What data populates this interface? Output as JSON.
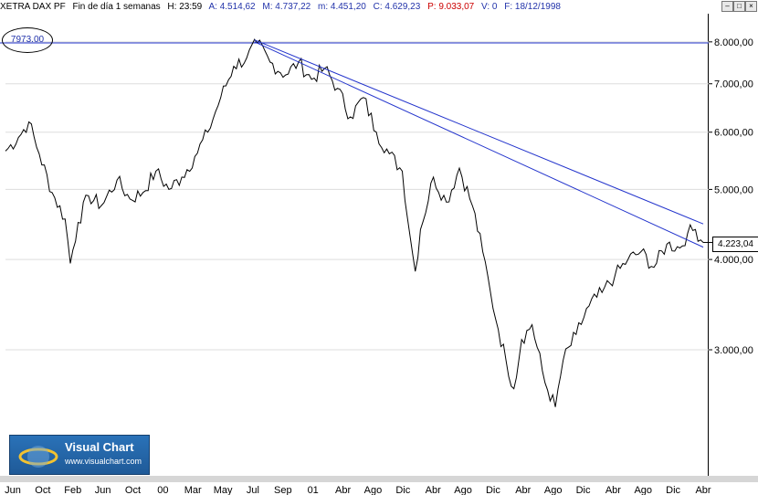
{
  "header": {
    "symbol": "XETRA DAX PF",
    "period": "Fin de día 1 semanas",
    "hour": "H: 23:59",
    "open": "A: 4.514,62",
    "high": "M: 4.737,22",
    "low": "m: 4.451,20",
    "close": "C: 4.629,23",
    "point": "P: 9.033,07",
    "volume": "V: 0",
    "date": "F: 18/12/1998"
  },
  "window_buttons": [
    "–",
    "□",
    "×"
  ],
  "level_label": "7973.00",
  "last_price": "4.223,04",
  "logo": {
    "title": "Visual Chart",
    "url": "www.visualchart.com"
  },
  "colors": {
    "price_line": "#000000",
    "trend_lines": "#2233cc",
    "level_line": "#2233cc"
  },
  "chart_data": {
    "type": "line",
    "title": "",
    "y_scale": "log",
    "ylim": [
      2500,
      8500
    ],
    "yticks": [
      8000,
      7000,
      6000,
      5000,
      4000,
      3000
    ],
    "ytick_labels": [
      "8.000,00",
      "7.000,00",
      "6.000,00",
      "5.000,00",
      "4.000,00",
      "3.000,00"
    ],
    "xtick_labels": [
      "Jun",
      "Oct",
      "Feb",
      "Jun",
      "Oct",
      "00",
      "Mar",
      "May",
      "Jul",
      "Sep",
      "01",
      "Abr",
      "Ago",
      "Dic",
      "Abr",
      "Ago",
      "Dic",
      "Abr",
      "Ago",
      "Dic",
      "Abr",
      "Ago",
      "Dic",
      "Abr"
    ],
    "n_points": 270,
    "price_anchors": [
      [
        0,
        5650
      ],
      [
        5,
        5900
      ],
      [
        9,
        6200
      ],
      [
        13,
        5600
      ],
      [
        18,
        4950
      ],
      [
        23,
        4550
      ],
      [
        25,
        3950
      ],
      [
        28,
        4500
      ],
      [
        32,
        4900
      ],
      [
        37,
        4750
      ],
      [
        43,
        5150
      ],
      [
        48,
        4850
      ],
      [
        53,
        4950
      ],
      [
        58,
        5300
      ],
      [
        63,
        5000
      ],
      [
        68,
        5200
      ],
      [
        73,
        5550
      ],
      [
        78,
        6000
      ],
      [
        83,
        6700
      ],
      [
        88,
        7400
      ],
      [
        93,
        7600
      ],
      [
        97,
        7973
      ],
      [
        102,
        7500
      ],
      [
        108,
        7200
      ],
      [
        113,
        7500
      ],
      [
        118,
        7100
      ],
      [
        123,
        7350
      ],
      [
        128,
        6900
      ],
      [
        133,
        6300
      ],
      [
        138,
        6700
      ],
      [
        143,
        6000
      ],
      [
        148,
        5600
      ],
      [
        153,
        5300
      ],
      [
        156,
        4300
      ],
      [
        158,
        3850
      ],
      [
        160,
        4400
      ],
      [
        165,
        5200
      ],
      [
        170,
        4800
      ],
      [
        175,
        5350
      ],
      [
        180,
        4750
      ],
      [
        184,
        4100
      ],
      [
        187,
        3600
      ],
      [
        190,
        3200
      ],
      [
        193,
        2900
      ],
      [
        196,
        2650
      ],
      [
        199,
        3100
      ],
      [
        203,
        3250
      ],
      [
        208,
        2700
      ],
      [
        212,
        2500
      ],
      [
        215,
        2900
      ],
      [
        220,
        3150
      ],
      [
        225,
        3450
      ],
      [
        230,
        3600
      ],
      [
        235,
        3800
      ],
      [
        240,
        4000
      ],
      [
        245,
        4100
      ],
      [
        250,
        3900
      ],
      [
        255,
        4200
      ],
      [
        260,
        4150
      ],
      [
        263,
        4350
      ],
      [
        266,
        4400
      ],
      [
        269,
        4223
      ]
    ],
    "series": [
      {
        "name": "",
        "values": []
      }
    ],
    "horizontal_level": 7973,
    "trend_lines": [
      {
        "from": [
          96,
          8050
        ],
        "to": [
          269,
          4480
        ]
      },
      {
        "from": [
          96,
          8000
        ],
        "to": [
          269,
          4160
        ]
      }
    ]
  }
}
